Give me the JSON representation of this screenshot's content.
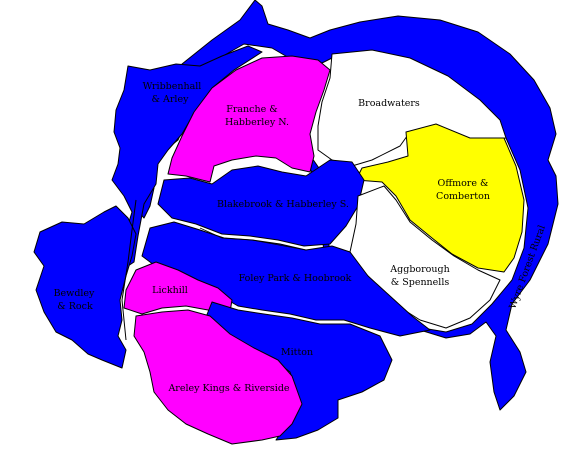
{
  "colors": {
    "blue": "#0000ff",
    "magenta": "#ff00ff",
    "yellow": "#ffff00",
    "white": "#ffffff",
    "border": "#000000"
  },
  "wards": {
    "wribbenhall": {
      "line1": "Wribbenhall",
      "line2": "& Arley",
      "fill": "blue"
    },
    "franche": {
      "line1": "Franche &",
      "line2": "Habberley N.",
      "fill": "magenta"
    },
    "broadwaters": {
      "line1": "Broadwaters",
      "fill": "white"
    },
    "offmore": {
      "line1": "Offmore &",
      "line2": "Comberton",
      "fill": "yellow"
    },
    "blakebrook": {
      "line1": "Blakebrook & Habberley S.",
      "fill": "blue"
    },
    "aggborough": {
      "line1": "Aggborough",
      "line2": "& Spennells",
      "fill": "white"
    },
    "foley": {
      "line1": "Foley Park & Hoobrook",
      "fill": "blue"
    },
    "bewdley": {
      "line1": "Bewdley",
      "line2": "& Rock",
      "fill": "blue"
    },
    "lickhill": {
      "line1": "Lickhill",
      "fill": "magenta"
    },
    "mitton": {
      "line1": "Mitton",
      "fill": "blue"
    },
    "areley": {
      "line1": "Areley Kings & Riverside",
      "fill": "magenta"
    },
    "wyre": {
      "line1": "Wyre Forest Rural",
      "fill": "blue"
    }
  }
}
